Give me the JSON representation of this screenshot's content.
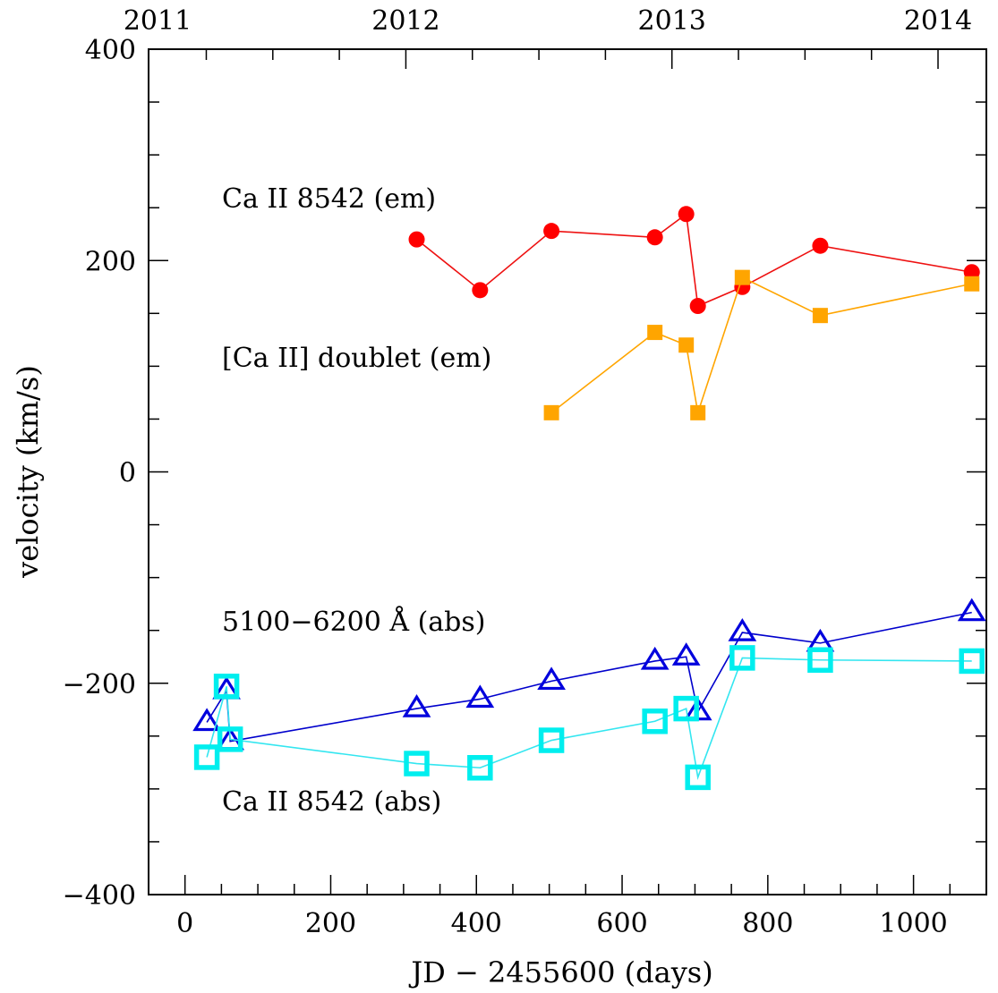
{
  "chart_data": {
    "type": "line",
    "xlabel": "JD − 2455600 (days)",
    "ylabel": "velocity (km/s)",
    "xlim": [
      -50,
      1100
    ],
    "ylim": [
      -400,
      400
    ],
    "grid": false,
    "legend": "none",
    "x_ticks": [
      {
        "value": 0,
        "label": "0"
      },
      {
        "value": 200,
        "label": "200"
      },
      {
        "value": 400,
        "label": "400"
      },
      {
        "value": 600,
        "label": "600"
      },
      {
        "value": 800,
        "label": "800"
      },
      {
        "value": 1000,
        "label": "1000"
      }
    ],
    "y_ticks": [
      {
        "value": -400,
        "label": "−400"
      },
      {
        "value": -200,
        "label": "−200"
      },
      {
        "value": 0,
        "label": "0"
      },
      {
        "value": 200,
        "label": "200"
      },
      {
        "value": 400,
        "label": "400"
      }
    ],
    "top_axis_ticks": [
      {
        "value": 2011,
        "label": "2011"
      },
      {
        "value": 2012,
        "label": "2012"
      },
      {
        "value": 2013,
        "label": "2013"
      },
      {
        "value": 2014,
        "label": "2014"
      }
    ],
    "annotations": [
      {
        "text": "Ca II 8542 (em)",
        "series": "ca8542_em"
      },
      {
        "text": "[Ca II] doublet (em)",
        "series": "caii_doublet_em"
      },
      {
        "text": "5100−6200 Å (abs)",
        "series": "abs_5100_6200"
      },
      {
        "text": "Ca II 8542 (abs)",
        "series": "ca8542_abs"
      }
    ],
    "series": [
      {
        "id": "ca8542_em",
        "marker": "circle",
        "color": "#ff0000",
        "line_color": "#ee1111",
        "x": [
          318,
          405,
          503,
          645,
          688,
          704,
          765,
          872,
          1080
        ],
        "y": [
          220,
          172,
          228,
          222,
          244,
          157,
          175,
          214,
          189
        ]
      },
      {
        "id": "caii_doublet_em",
        "marker": "square",
        "color": "#ffa500",
        "line_color": "#ffa500",
        "x": [
          503,
          645,
          688,
          704,
          765,
          872,
          1080
        ],
        "y": [
          56,
          132,
          120,
          56,
          184,
          148,
          178
        ]
      },
      {
        "id": "abs_5100_6200",
        "marker": "open-triangle",
        "color": "#0000dd",
        "line_color": "#0000cc",
        "x": [
          30,
          57,
          62,
          318,
          405,
          503,
          645,
          688,
          704,
          765,
          872,
          1080
        ],
        "y": [
          -237,
          -207,
          -255,
          -224,
          -215,
          -198,
          -179,
          -175,
          -227,
          -152,
          -162,
          -133
        ]
      },
      {
        "id": "ca8542_abs",
        "marker": "open-square",
        "color": "#00eeee",
        "line_color": "#33e6f0",
        "x": [
          30,
          57,
          62,
          318,
          405,
          503,
          645,
          688,
          704,
          765,
          872,
          1080
        ],
        "y": [
          -270,
          -203,
          -253,
          -276,
          -280,
          -254,
          -236,
          -224,
          -289,
          -176,
          -178,
          -179
        ]
      }
    ]
  }
}
